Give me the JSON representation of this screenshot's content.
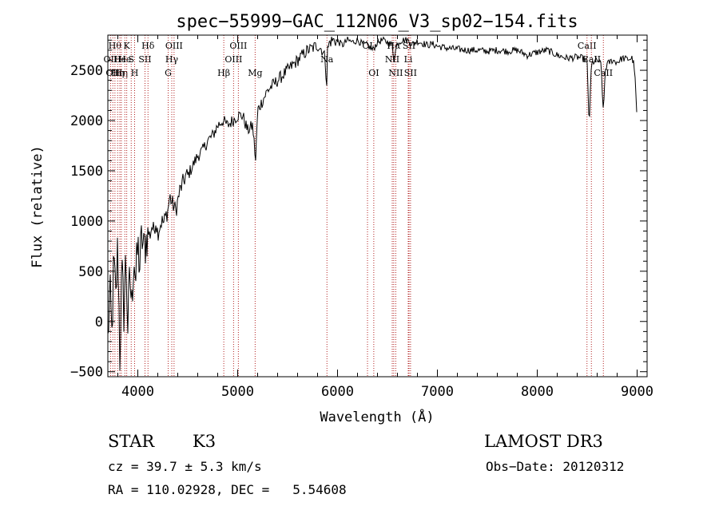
{
  "chart_data": {
    "type": "line",
    "title": "spec−55999−GAC_112N06_V3_sp02−154.fits",
    "xlabel": "Wavelength (Å)",
    "ylabel": "Flux (relative)",
    "xlim": [
      3700,
      9100
    ],
    "ylim": [
      -550,
      2850
    ],
    "x_ticks": [
      4000,
      5000,
      6000,
      7000,
      8000,
      9000
    ],
    "x_tick_labels": [
      "4000",
      "5000",
      "6000",
      "7000",
      "8000",
      "9000"
    ],
    "y_ticks": [
      -500,
      0,
      500,
      1000,
      1500,
      2000,
      2500
    ],
    "y_tick_labels": [
      "−500",
      "0",
      "500",
      "1000",
      "1500",
      "2000",
      "2500"
    ],
    "grid": false,
    "series": [
      {
        "name": "flux",
        "x": [
          3700,
          3720,
          3740,
          3760,
          3780,
          3800,
          3820,
          3840,
          3860,
          3880,
          3900,
          3920,
          3940,
          3960,
          3980,
          4000,
          4020,
          4040,
          4060,
          4080,
          4100,
          4120,
          4140,
          4160,
          4180,
          4200,
          4220,
          4240,
          4260,
          4280,
          4300,
          4320,
          4340,
          4360,
          4380,
          4400,
          4420,
          4440,
          4460,
          4480,
          4500,
          4550,
          4600,
          4650,
          4700,
          4750,
          4800,
          4850,
          4900,
          4950,
          5000,
          5050,
          5100,
          5150,
          5180,
          5200,
          5250,
          5300,
          5350,
          5400,
          5450,
          5500,
          5550,
          5600,
          5650,
          5700,
          5750,
          5800,
          5850,
          5880,
          5890,
          5900,
          5920,
          5950,
          6000,
          6050,
          6100,
          6150,
          6200,
          6250,
          6300,
          6350,
          6400,
          6450,
          6500,
          6550,
          6563,
          6600,
          6650,
          6700,
          6750,
          6800,
          6850,
          6900,
          6950,
          7000,
          7100,
          7200,
          7300,
          7400,
          7500,
          7600,
          7700,
          7800,
          7900,
          8000,
          8100,
          8200,
          8300,
          8400,
          8450,
          8498,
          8520,
          8542,
          8560,
          8600,
          8640,
          8662,
          8680,
          8700,
          8750,
          8800,
          8850,
          8900,
          8950,
          8970,
          8980,
          8990,
          9000
        ],
        "y": [
          -200,
          300,
          -150,
          600,
          200,
          800,
          -350,
          500,
          100,
          650,
          -50,
          450,
          150,
          700,
          400,
          750,
          550,
          850,
          700,
          800,
          900,
          850,
          950,
          900,
          1000,
          880,
          950,
          1000,
          980,
          1050,
          1100,
          1250,
          1180,
          1150,
          1100,
          1200,
          1300,
          1350,
          1400,
          1450,
          1450,
          1550,
          1650,
          1700,
          1800,
          1850,
          1950,
          2000,
          1950,
          2000,
          2050,
          2050,
          1900,
          1950,
          1600,
          2100,
          2200,
          2300,
          2350,
          2400,
          2450,
          2500,
          2550,
          2600,
          2650,
          2700,
          2720,
          2750,
          2700,
          2600,
          2300,
          2700,
          2780,
          2800,
          2790,
          2750,
          2800,
          2780,
          2800,
          2760,
          2750,
          2700,
          2780,
          2800,
          2780,
          2750,
          2600,
          2780,
          2800,
          2800,
          2760,
          2790,
          2770,
          2750,
          2760,
          2740,
          2720,
          2710,
          2700,
          2700,
          2690,
          2700,
          2690,
          2700,
          2650,
          2680,
          2700,
          2650,
          2620,
          2630,
          2620,
          2600,
          1950,
          2550,
          2580,
          2600,
          2560,
          2050,
          2500,
          2560,
          2600,
          2580,
          2620,
          2610,
          2620,
          2550,
          2400,
          2200,
          2000
        ]
      }
    ],
    "lines": [
      {
        "wavelength": 3727,
        "label": "OII",
        "row": 2
      },
      {
        "wavelength": 3750,
        "label": "OII",
        "row": 3
      },
      {
        "wavelength": 3771,
        "label": "Hθ",
        "row": 1
      },
      {
        "wavelength": 3798,
        "label": "Hη",
        "row": 3
      },
      {
        "wavelength": 3820,
        "label": "He",
        "row": 2
      },
      {
        "wavelength": 3835,
        "label": "Hη",
        "row": 3
      },
      {
        "wavelength": 3870,
        "label": "He",
        "row": 2
      },
      {
        "wavelength": 3889,
        "label": "K",
        "row": 1
      },
      {
        "wavelength": 3934,
        "label": "S",
        "row": 2
      },
      {
        "wavelength": 3968,
        "label": "H",
        "row": 3
      },
      {
        "wavelength": 4072,
        "label": "SII",
        "row": 2
      },
      {
        "wavelength": 4102,
        "label": "Hδ",
        "row": 1
      },
      {
        "wavelength": 4304,
        "label": "G",
        "row": 3
      },
      {
        "wavelength": 4340,
        "label": "Hγ",
        "row": 2
      },
      {
        "wavelength": 4363,
        "label": "OIII",
        "row": 1
      },
      {
        "wavelength": 4861,
        "label": "Hβ",
        "row": 3
      },
      {
        "wavelength": 4959,
        "label": "OIII",
        "row": 2
      },
      {
        "wavelength": 5007,
        "label": "OIII",
        "row": 1
      },
      {
        "wavelength": 5175,
        "label": "Mg",
        "row": 3
      },
      {
        "wavelength": 5894,
        "label": "Na",
        "row": 2
      },
      {
        "wavelength": 6300,
        "label": "OI",
        "row": 1
      },
      {
        "wavelength": 6363,
        "label": "OI",
        "row": 3
      },
      {
        "wavelength": 6548,
        "label": "NII",
        "row": 2
      },
      {
        "wavelength": 6563,
        "label": "Hα",
        "row": 1
      },
      {
        "wavelength": 6583,
        "label": "NII",
        "row": 3
      },
      {
        "wavelength": 6708,
        "label": "Li",
        "row": 2
      },
      {
        "wavelength": 6716,
        "label": "SII",
        "row": 1
      },
      {
        "wavelength": 6731,
        "label": "SII",
        "row": 3
      },
      {
        "wavelength": 8498,
        "label": "CaII",
        "row": 1
      },
      {
        "wavelength": 8542,
        "label": "CaII",
        "row": 2
      },
      {
        "wavelength": 8662,
        "label": "CaII",
        "row": 3
      }
    ]
  },
  "info": {
    "class": "STAR",
    "subclass": "K3",
    "survey": "LAMOST DR3",
    "cz": "cz = 39.7 ± 5.3 km/s",
    "obs_date": "Obs−Date: 20120312",
    "radec": "RA = 110.02928, DEC =   5.54608"
  }
}
